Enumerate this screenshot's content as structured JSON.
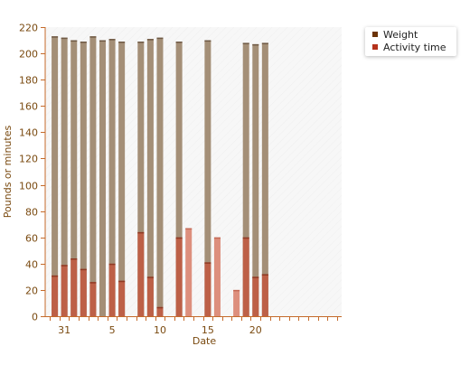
{
  "chart_data": {
    "type": "bar",
    "stacked": true,
    "title": "",
    "xlabel": "Date",
    "ylabel": "Pounds or minutes",
    "ylim": [
      0,
      220
    ],
    "yticks": [
      0,
      20,
      40,
      60,
      80,
      100,
      120,
      140,
      160,
      180,
      200,
      220
    ],
    "x_day_range": [
      29,
      60
    ],
    "x_tick_labels": [
      {
        "day": 31,
        "label": "31"
      },
      {
        "day": 36,
        "label": "5"
      },
      {
        "day": 41,
        "label": "10"
      },
      {
        "day": 46,
        "label": "15"
      },
      {
        "day": 51,
        "label": "20"
      }
    ],
    "grid": false,
    "legend_position": "top-right",
    "legend": [
      {
        "name": "Weight",
        "color": "#6b3306"
      },
      {
        "name": "Activity time",
        "color": "#b5321c"
      }
    ],
    "colors": {
      "weight_bar": "#a48f77",
      "activity_bar": "#bd6047",
      "activity_only_bar": "#dd8f7d",
      "axis": "#c46a2a",
      "plot_background": "#f7f7f7"
    },
    "bars": [
      {
        "day": 30,
        "weight": 213,
        "activity": 31
      },
      {
        "day": 31,
        "weight": 212,
        "activity": 39
      },
      {
        "day": 32,
        "weight": 210,
        "activity": 44
      },
      {
        "day": 33,
        "weight": 209,
        "activity": 36
      },
      {
        "day": 34,
        "weight": 213,
        "activity": 26
      },
      {
        "day": 35,
        "weight": 210,
        "activity": null
      },
      {
        "day": 36,
        "weight": 211,
        "activity": 40
      },
      {
        "day": 37,
        "weight": 209,
        "activity": 27
      },
      {
        "day": 39,
        "weight": 209,
        "activity": 64
      },
      {
        "day": 40,
        "weight": 211,
        "activity": 30
      },
      {
        "day": 41,
        "weight": 212,
        "activity": 7
      },
      {
        "day": 43,
        "weight": 209,
        "activity": 60
      },
      {
        "day": 44,
        "weight": null,
        "activity": 67
      },
      {
        "day": 46,
        "weight": 210,
        "activity": 41
      },
      {
        "day": 47,
        "weight": null,
        "activity": 60
      },
      {
        "day": 49,
        "weight": null,
        "activity": 20
      },
      {
        "day": 50,
        "weight": 208,
        "activity": 60
      },
      {
        "day": 51,
        "weight": 207,
        "activity": 30
      },
      {
        "day": 52,
        "weight": 208,
        "activity": 32
      }
    ]
  }
}
